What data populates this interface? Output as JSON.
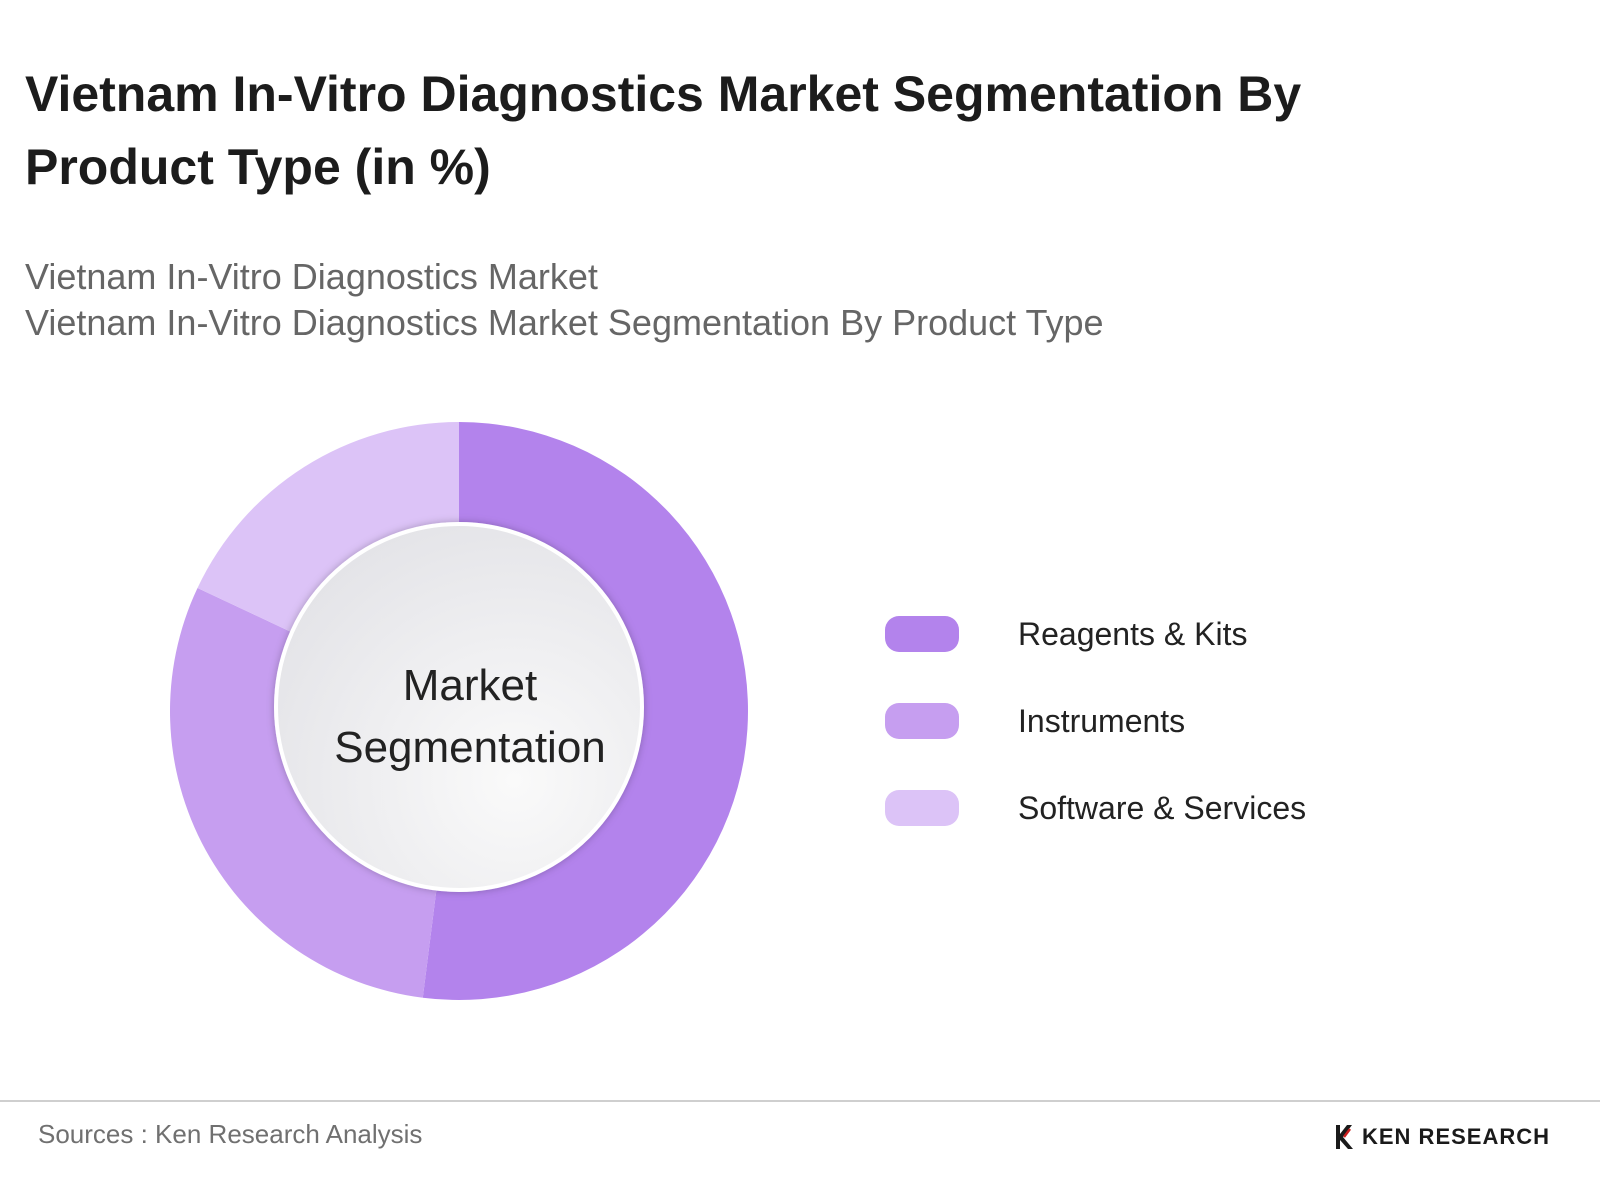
{
  "header": {
    "title": "Vietnam In-Vitro Diagnostics Market Segmentation By Product Type (in %)",
    "subtitle_line1": "Vietnam In-Vitro Diagnostics Market",
    "subtitle_line2": "Vietnam In-Vitro Diagnostics Market Segmentation By Product Type"
  },
  "chart_data": {
    "type": "pie",
    "center_label_line1": "Market",
    "center_label_line2": "Segmentation",
    "categories": [
      "Reagents & Kits",
      "Instruments",
      "Software & Services"
    ],
    "values": [
      52,
      30,
      18
    ],
    "colors": [
      "#b383ec",
      "#c69ef0",
      "#dcc3f7"
    ],
    "legend_position": "right"
  },
  "footer": {
    "source": "Sources : Ken Research Analysis",
    "logo_text": "KEN RESEARCH"
  }
}
